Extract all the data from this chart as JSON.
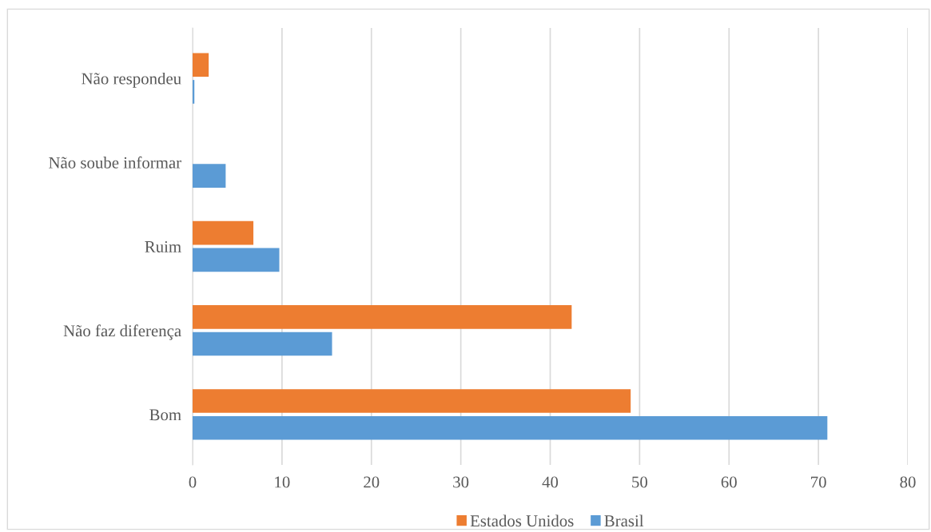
{
  "chart_data": {
    "type": "bar",
    "orientation": "horizontal",
    "categories": [
      "Não respondeu",
      "Não soube informar",
      "Ruim",
      "Não faz diferença",
      "Bom"
    ],
    "series": [
      {
        "name": "Estados Unidos",
        "color": "#ed7d31",
        "values": [
          1.8,
          null,
          6.8,
          42.4,
          49
        ]
      },
      {
        "name": "Brasil",
        "color": "#5b9bd5",
        "values": [
          0.2,
          3.7,
          9.7,
          15.6,
          71
        ]
      }
    ],
    "xlim": [
      0,
      80
    ],
    "xticks": [
      0,
      10,
      20,
      30,
      40,
      50,
      60,
      70,
      80
    ],
    "grid": "x",
    "legend": "bottom"
  }
}
